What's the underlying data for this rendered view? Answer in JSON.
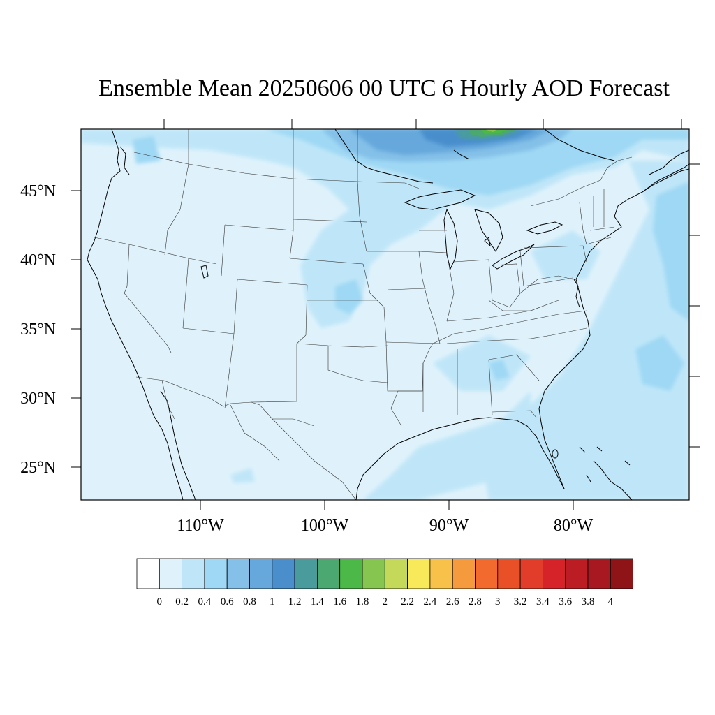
{
  "title": "Ensemble Mean 20250606 00 UTC 6 Hourly AOD Forecast",
  "map": {
    "lat_labels": [
      "45°N",
      "40°N",
      "35°N",
      "30°N",
      "25°N"
    ],
    "lon_labels": [
      "110°W",
      "100°W",
      "90°W",
      "80°W"
    ],
    "ocean_color": "#dff2fb",
    "land_background_color": "#dff2fb"
  },
  "colorbar": {
    "labels": [
      "0",
      "0.2",
      "0.4",
      "0.6",
      "0.8",
      "1",
      "1.2",
      "1.4",
      "1.6",
      "1.8",
      "2",
      "2.2",
      "2.4",
      "2.6",
      "2.8",
      "3",
      "3.2",
      "3.4",
      "3.6",
      "3.8",
      "4"
    ],
    "colors": [
      "#ffffff",
      "#dff2fb",
      "#bfe6f8",
      "#9fd8f4",
      "#84c0e8",
      "#66a8dc",
      "#4a8ecc",
      "#4a9c9c",
      "#4aa870",
      "#4cb848",
      "#86c650",
      "#c4d85a",
      "#f8e95a",
      "#f8c24a",
      "#f69a3e",
      "#f26a2e",
      "#ea5028",
      "#e23c2a",
      "#d6232a",
      "#bc1c24",
      "#a81820",
      "#8e1418"
    ]
  }
}
